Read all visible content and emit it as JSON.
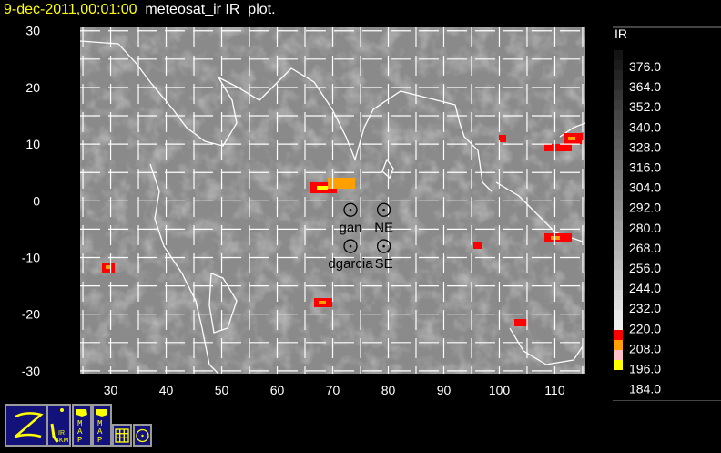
{
  "title": {
    "date": "9-dec-2011,00:01:00",
    "text": "meteosat_ir IR  plot."
  },
  "map": {
    "lon_range": [
      24.5,
      115.5
    ],
    "lat_range": [
      -30.5,
      30.6
    ],
    "x_ticks": [
      "30",
      "40",
      "50",
      "60",
      "70",
      "80",
      "90",
      "100",
      "110"
    ],
    "y_ticks": [
      "30",
      "20",
      "10",
      "0",
      "-10",
      "-20",
      "-30"
    ],
    "grid_spacing_deg": 5,
    "stations": [
      {
        "name": "gan",
        "lon": 73.2,
        "lat": -1.6
      },
      {
        "name": "NE",
        "lon": 79.2,
        "lat": -1.6
      },
      {
        "name": "dgarcia",
        "lon": 73.2,
        "lat": -8.0
      },
      {
        "name": "SE",
        "lon": 79.2,
        "lat": -8.0
      }
    ]
  },
  "colorbar": {
    "title": "IR",
    "labels": [
      "376.0",
      "364.0",
      "352.0",
      "340.0",
      "328.0",
      "316.0",
      "304.0",
      "292.0",
      "280.0",
      "268.0",
      "256.0",
      "244.0",
      "232.0",
      "220.0",
      "208.0",
      "196.0",
      "184.0"
    ],
    "cold_colors": [
      "#ff0000",
      "#ffa000",
      "#ffc0cb",
      "#ffff00"
    ]
  },
  "toolbar": [
    {
      "icon": "zoom-z-icon"
    },
    {
      "icon": "ir-4km-icon",
      "label": "IR 4KM"
    },
    {
      "icon": "map-icon",
      "label": "MAP"
    },
    {
      "icon": "map-icon",
      "label": "MAP"
    },
    {
      "icon": "grid-icon"
    },
    {
      "icon": "station-target-icon"
    }
  ]
}
